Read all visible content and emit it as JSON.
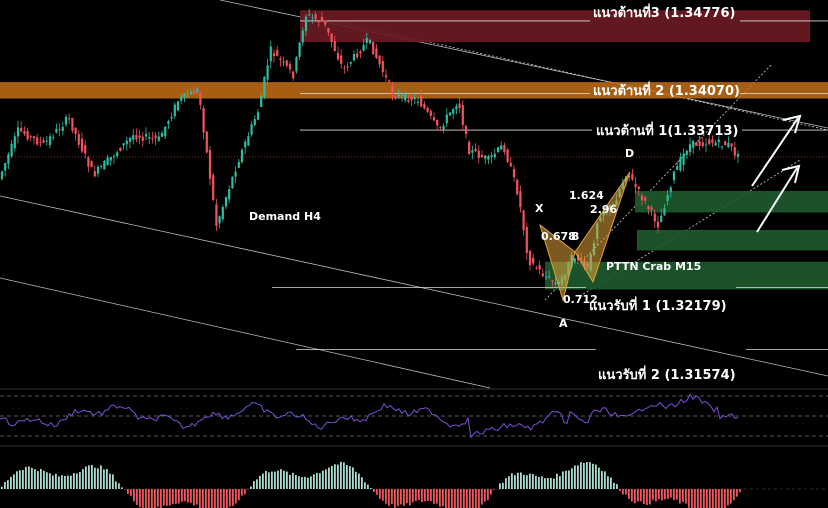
{
  "chart_data": {
    "type": "candlestick",
    "title": "",
    "xlabel": "",
    "ylabel": "",
    "ylim": [
      1.312,
      1.3498
    ],
    "colors": {
      "up": "#2bbfa1",
      "down": "#f2535d",
      "background": "#000000",
      "rsi": "#7b4fd6"
    },
    "levels": [
      {
        "label": "แนวต้านที่3 (1.34776)",
        "value": 1.34776
      },
      {
        "label": "แนวต้านที่ 2 (1.34070)",
        "value": 1.3407
      },
      {
        "label": "แนวต้านที่ 1(1.33713)",
        "value": 1.33713
      },
      {
        "label": "แนวรับที่ 1 (1.32179)",
        "value": 1.32179
      },
      {
        "label": "แนวรับที่ 2 (1.31574)",
        "value": 1.31574
      }
    ],
    "zones": [
      {
        "kind": "resistance",
        "low": 1.3457,
        "high": 1.3488
      },
      {
        "kind": "resistance",
        "low": 1.3402,
        "high": 1.3418
      },
      {
        "kind": "demand",
        "low": 1.3291,
        "high": 1.3312
      },
      {
        "kind": "demand",
        "low": 1.3254,
        "high": 1.3274
      },
      {
        "kind": "demand",
        "low": 1.3216,
        "high": 1.3243
      }
    ],
    "annotations": {
      "demand_h4": "Demand H4",
      "pattern": "PTTN Crab M15",
      "points": [
        "X",
        "A",
        "B",
        "D"
      ],
      "ratios": [
        "0.678",
        "0.712",
        "1.624",
        "2.96"
      ]
    }
  }
}
